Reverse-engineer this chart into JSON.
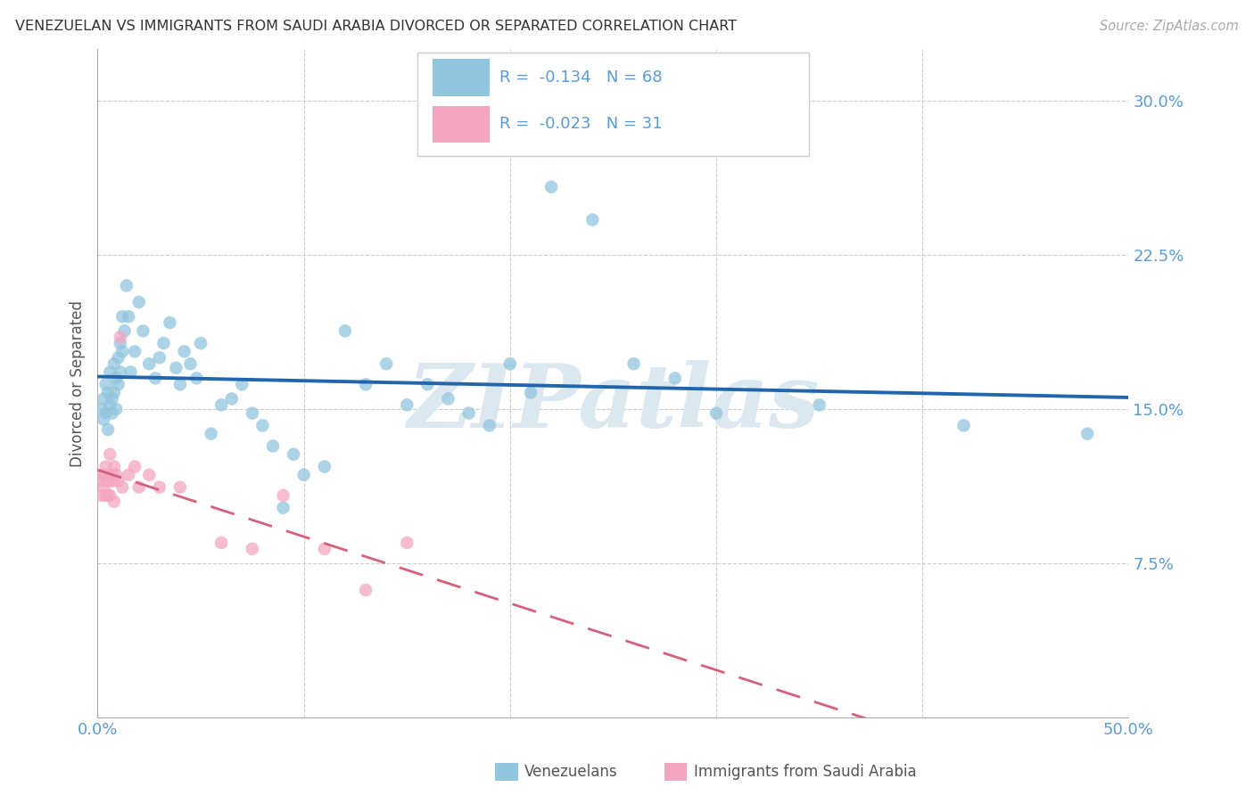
{
  "title": "VENEZUELAN VS IMMIGRANTS FROM SAUDI ARABIA DIVORCED OR SEPARATED CORRELATION CHART",
  "source": "Source: ZipAtlas.com",
  "ylabel": "Divorced or Separated",
  "xlim": [
    0.0,
    0.5
  ],
  "ylim": [
    0.0,
    0.325
  ],
  "legend_text1": "R =  -0.134   N = 68",
  "legend_text2": "R =  -0.023   N = 31",
  "color_blue": "#92c5de",
  "color_pink": "#f4a6c0",
  "trendline_blue": "#2166ac",
  "trendline_pink": "#d6607a",
  "watermark": "ZIPatlas",
  "watermark_color": "#dce8f0",
  "background_color": "#ffffff",
  "grid_color": "#cccccc",
  "tick_color": "#5b9bd5",
  "venezuelan_x": [
    0.002,
    0.003,
    0.003,
    0.004,
    0.004,
    0.005,
    0.005,
    0.006,
    0.006,
    0.007,
    0.007,
    0.008,
    0.008,
    0.009,
    0.009,
    0.01,
    0.01,
    0.011,
    0.011,
    0.012,
    0.012,
    0.013,
    0.014,
    0.015,
    0.016,
    0.018,
    0.02,
    0.022,
    0.025,
    0.028,
    0.03,
    0.032,
    0.035,
    0.038,
    0.04,
    0.042,
    0.045,
    0.048,
    0.05,
    0.055,
    0.06,
    0.065,
    0.07,
    0.075,
    0.08,
    0.085,
    0.09,
    0.095,
    0.1,
    0.11,
    0.12,
    0.13,
    0.14,
    0.15,
    0.16,
    0.17,
    0.18,
    0.19,
    0.2,
    0.21,
    0.22,
    0.24,
    0.26,
    0.28,
    0.3,
    0.35,
    0.42,
    0.48
  ],
  "venezuelan_y": [
    0.15,
    0.145,
    0.155,
    0.148,
    0.162,
    0.158,
    0.14,
    0.152,
    0.168,
    0.155,
    0.148,
    0.172,
    0.158,
    0.165,
    0.15,
    0.175,
    0.162,
    0.168,
    0.182,
    0.178,
    0.195,
    0.188,
    0.21,
    0.195,
    0.168,
    0.178,
    0.202,
    0.188,
    0.172,
    0.165,
    0.175,
    0.182,
    0.192,
    0.17,
    0.162,
    0.178,
    0.172,
    0.165,
    0.182,
    0.138,
    0.152,
    0.155,
    0.162,
    0.148,
    0.142,
    0.132,
    0.102,
    0.128,
    0.118,
    0.122,
    0.188,
    0.162,
    0.172,
    0.152,
    0.162,
    0.155,
    0.148,
    0.142,
    0.172,
    0.158,
    0.258,
    0.242,
    0.172,
    0.165,
    0.148,
    0.152,
    0.142,
    0.138
  ],
  "saudi_x": [
    0.001,
    0.002,
    0.002,
    0.003,
    0.003,
    0.004,
    0.004,
    0.005,
    0.005,
    0.006,
    0.006,
    0.007,
    0.007,
    0.008,
    0.008,
    0.009,
    0.01,
    0.011,
    0.012,
    0.015,
    0.018,
    0.02,
    0.025,
    0.03,
    0.04,
    0.06,
    0.075,
    0.09,
    0.11,
    0.13,
    0.15
  ],
  "saudi_y": [
    0.115,
    0.118,
    0.108,
    0.112,
    0.118,
    0.122,
    0.108,
    0.115,
    0.108,
    0.128,
    0.108,
    0.115,
    0.118,
    0.122,
    0.105,
    0.118,
    0.115,
    0.185,
    0.112,
    0.118,
    0.122,
    0.112,
    0.118,
    0.112,
    0.112,
    0.085,
    0.082,
    0.108,
    0.082,
    0.062,
    0.085
  ]
}
